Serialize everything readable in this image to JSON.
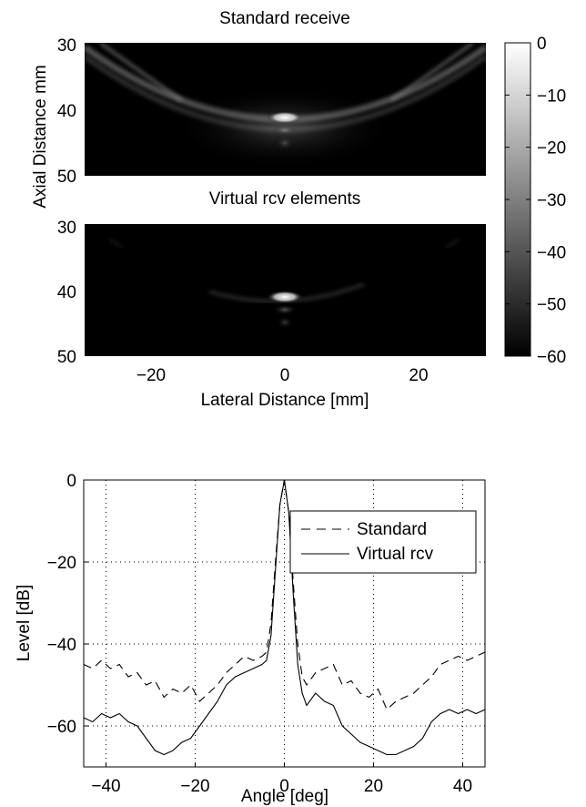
{
  "chart_data": [
    {
      "type": "heatmap",
      "title": "Standard receive",
      "xlim": [
        -30,
        30
      ],
      "ylim": [
        50,
        30
      ],
      "yticks": [
        "30",
        "40",
        "50"
      ],
      "shared_ylabel": "Axial Distance mm",
      "colormap": "gray",
      "features": {
        "hot_spot": {
          "x": 0,
          "y": 38.5,
          "level_db": 0
        },
        "arc_sidelobes": "strong, curving up toward both upper corners",
        "clutter": "moderate"
      }
    },
    {
      "type": "heatmap",
      "title": "Virtual rcv elements",
      "xlim": [
        -30,
        30
      ],
      "ylim": [
        50,
        30
      ],
      "xticks": [
        "−20",
        "0",
        "20"
      ],
      "yticks": [
        "30",
        "40",
        "50"
      ],
      "xlabel": "Lateral Distance [mm]",
      "features": {
        "hot_spot": {
          "x": 0,
          "y": 38.5,
          "level_db": 0
        },
        "arc_sidelobes": "weak, short",
        "clutter": "low"
      },
      "colorbar": {
        "range": [
          -60,
          0
        ],
        "ticks": [
          "0",
          "−10",
          "−20",
          "−30",
          "−40",
          "−50",
          "−60"
        ]
      }
    },
    {
      "type": "line",
      "xlabel": "Angle [deg]",
      "ylabel": "Level [dB]",
      "xlim": [
        -45,
        45
      ],
      "ylim": [
        -70,
        0
      ],
      "xticks": [
        "−40",
        "−20",
        "0",
        "20",
        "40"
      ],
      "yticks": [
        "0",
        "−20",
        "−40",
        "−60"
      ],
      "grid": true,
      "legend": "top-right",
      "series": [
        {
          "name": "Standard",
          "style": "dashed",
          "x": [
            -45,
            -43,
            -41,
            -39,
            -37,
            -35,
            -33,
            -31,
            -29,
            -27,
            -25,
            -23,
            -21,
            -19,
            -17,
            -15,
            -13,
            -11,
            -9,
            -7,
            -5,
            -4,
            -3,
            -2,
            -1,
            0,
            1,
            2,
            3,
            4,
            5,
            7,
            9,
            11,
            13,
            15,
            17,
            19,
            21,
            23,
            25,
            27,
            29,
            31,
            33,
            35,
            37,
            39,
            41,
            43,
            45
          ],
          "y": [
            -45,
            -46,
            -44,
            -46,
            -45,
            -48,
            -47,
            -50,
            -49,
            -53,
            -51,
            -52,
            -50,
            -54,
            -52,
            -50,
            -47,
            -45,
            -43,
            -44,
            -43,
            -42,
            -35,
            -20,
            -6,
            0,
            -8,
            -25,
            -40,
            -48,
            -50,
            -47,
            -46,
            -45,
            -50,
            -49,
            -52,
            -53,
            -51,
            -56,
            -54,
            -53,
            -52,
            -50,
            -48,
            -45,
            -44,
            -43,
            -44,
            -43,
            -42
          ]
        },
        {
          "name": "Virtual rcv",
          "style": "solid",
          "x": [
            -45,
            -43,
            -41,
            -39,
            -37,
            -35,
            -33,
            -31,
            -29,
            -27,
            -25,
            -23,
            -21,
            -19,
            -17,
            -15,
            -13,
            -11,
            -9,
            -7,
            -5,
            -4,
            -3,
            -2,
            -1,
            0,
            1,
            2,
            3,
            4,
            5,
            7,
            9,
            11,
            13,
            15,
            17,
            19,
            21,
            23,
            25,
            27,
            29,
            31,
            33,
            35,
            37,
            39,
            41,
            43,
            45
          ],
          "y": [
            -58,
            -59,
            -57,
            -58,
            -57,
            -59,
            -60,
            -63,
            -66,
            -67,
            -66,
            -64,
            -63,
            -60,
            -57,
            -54,
            -50,
            -48,
            -47,
            -46,
            -45,
            -44,
            -38,
            -22,
            -6,
            0,
            -8,
            -28,
            -45,
            -52,
            -55,
            -52,
            -54,
            -55,
            -60,
            -62,
            -64,
            -65,
            -66,
            -67,
            -67,
            -66,
            -65,
            -63,
            -59,
            -57,
            -56,
            -57,
            -56,
            -57,
            -56
          ]
        }
      ]
    }
  ]
}
